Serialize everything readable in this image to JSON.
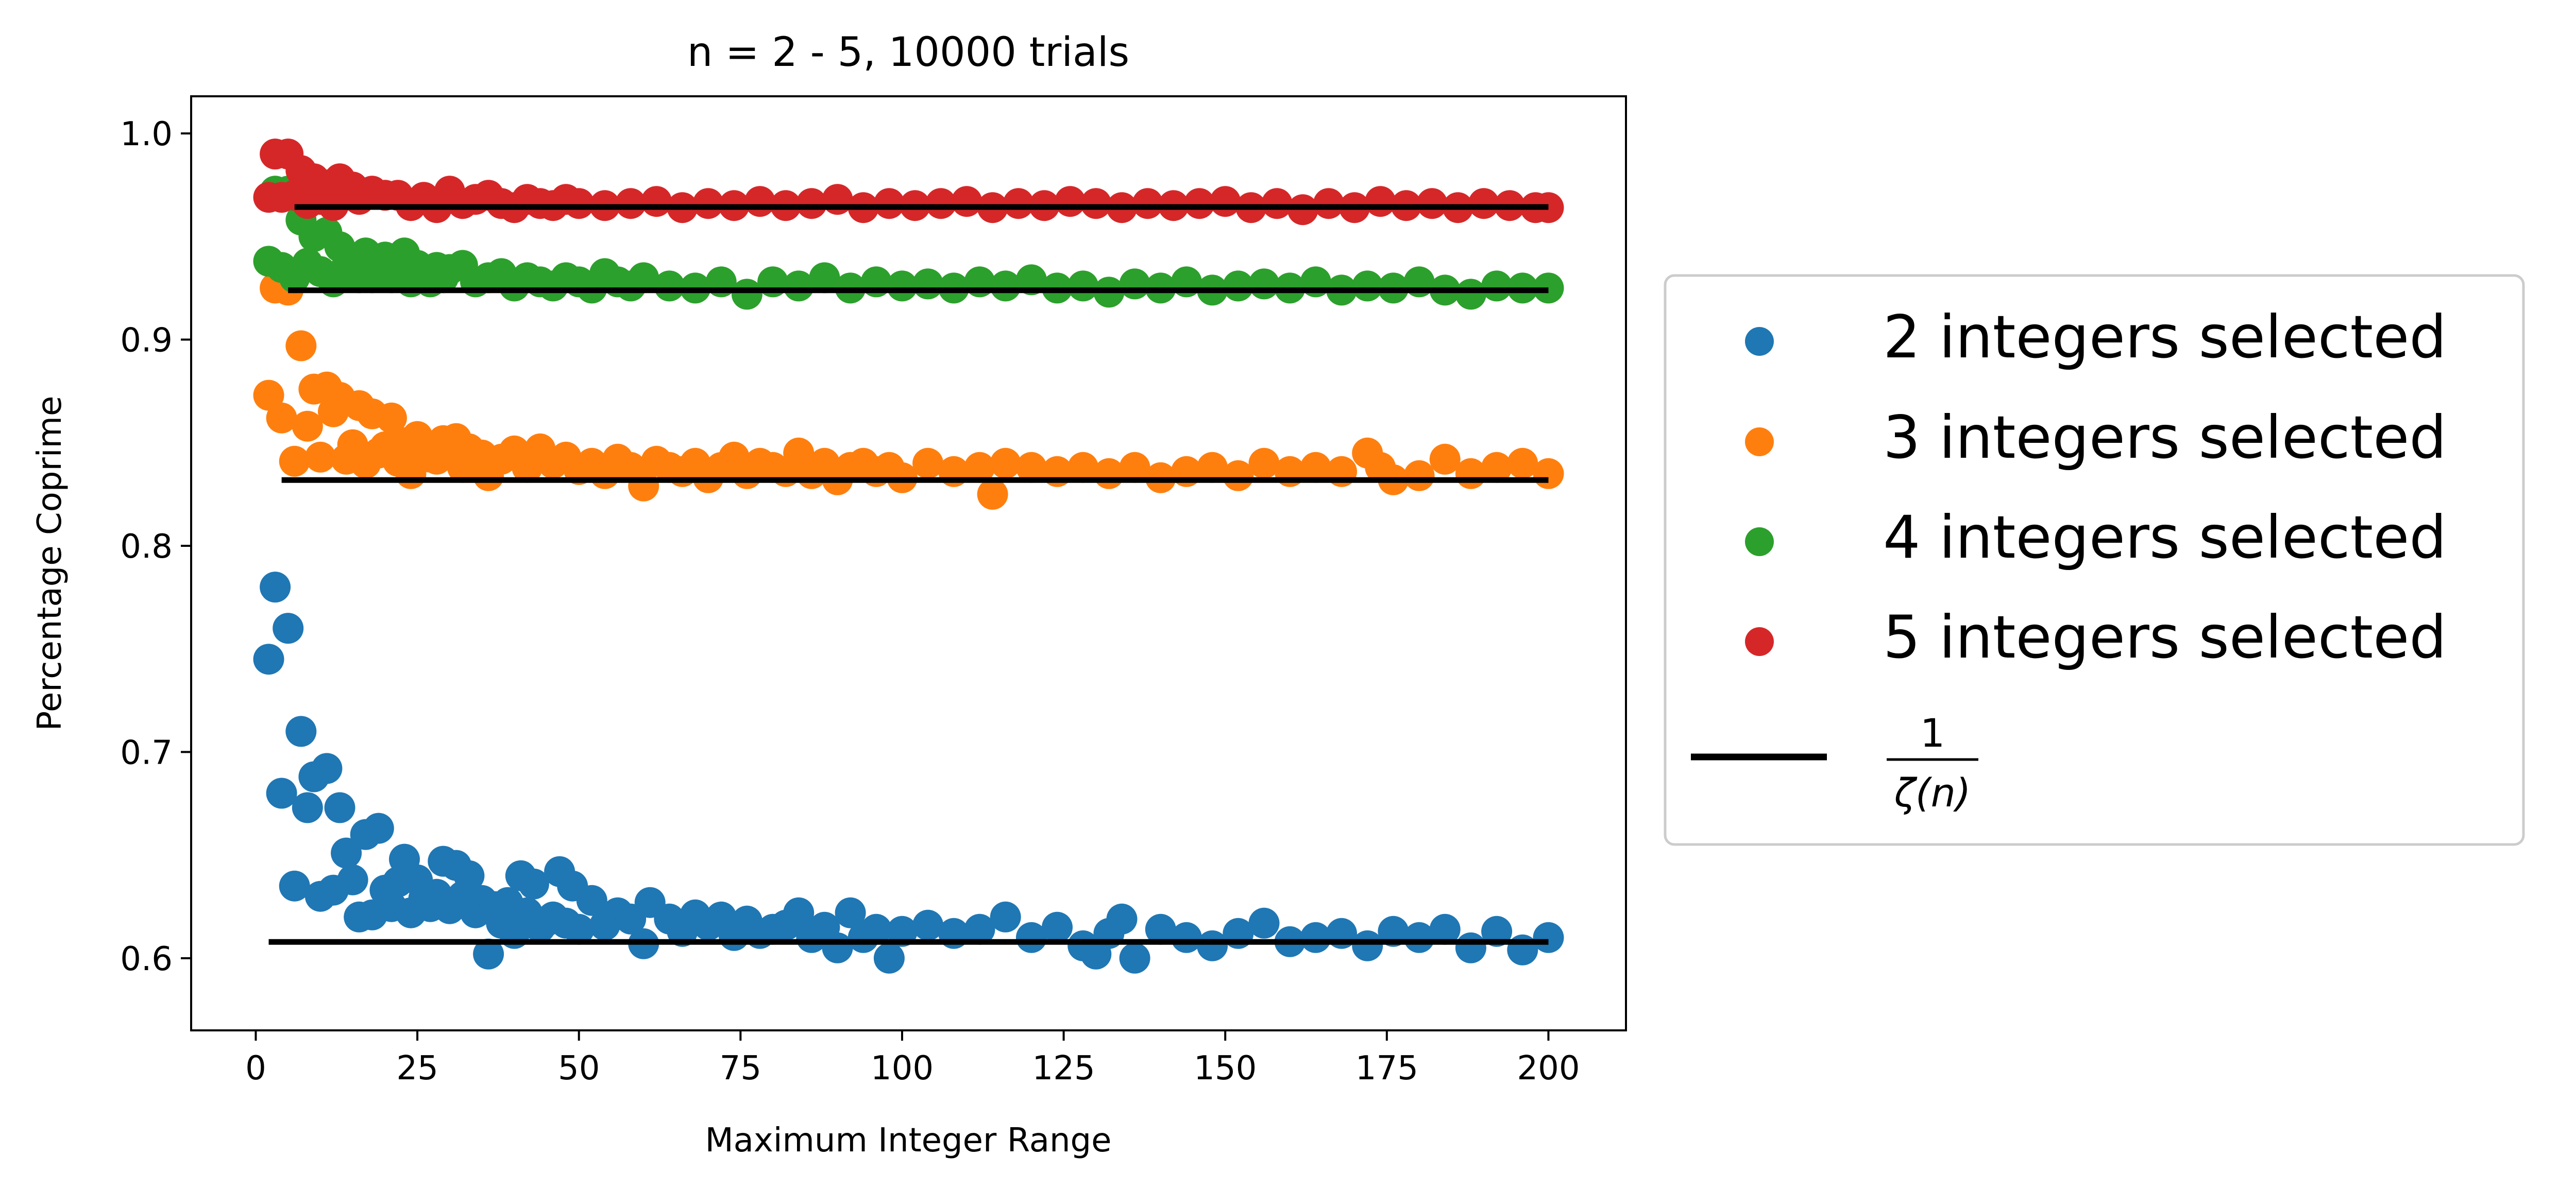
{
  "chart_data": {
    "type": "scatter",
    "title": "n = 2 - 5, 10000 trials",
    "xlabel": "Maximum Integer Range",
    "ylabel": "Percentage Coprime",
    "xlim": [
      -10,
      212
    ],
    "ylim": [
      0.565,
      1.018
    ],
    "xticks": [
      0,
      25,
      50,
      75,
      100,
      125,
      150,
      175,
      200
    ],
    "xtick_labels": [
      "0",
      "25",
      "50",
      "75",
      "100",
      "125",
      "150",
      "175",
      "200"
    ],
    "yticks": [
      0.6,
      0.7,
      0.8,
      0.9,
      1.0
    ],
    "ytick_labels": [
      "0.6",
      "0.7",
      "0.8",
      "0.9",
      "1.0"
    ],
    "legend_position": "right, outside plot",
    "series": [
      {
        "name": "2 integers selected",
        "color": "#1f77b4",
        "x": [
          2,
          3,
          4,
          5,
          6,
          7,
          8,
          9,
          10,
          11,
          12,
          13,
          14,
          15,
          16,
          17,
          18,
          19,
          20,
          21,
          22,
          23,
          24,
          25,
          26,
          27,
          28,
          29,
          30,
          31,
          32,
          33,
          34,
          35,
          36,
          37,
          38,
          39,
          40,
          41,
          42,
          43,
          44,
          45,
          46,
          47,
          48,
          49,
          50,
          52,
          54,
          56,
          58,
          60,
          61,
          64,
          66,
          68,
          70,
          72,
          74,
          76,
          78,
          80,
          82,
          84,
          86,
          88,
          90,
          92,
          94,
          96,
          98,
          100,
          104,
          108,
          112,
          116,
          120,
          124,
          128,
          130,
          132,
          134,
          136,
          140,
          144,
          148,
          152,
          156,
          160,
          164,
          168,
          172,
          176,
          180,
          184,
          188,
          192,
          196,
          200
        ],
        "y": [
          0.745,
          0.78,
          0.68,
          0.76,
          0.635,
          0.71,
          0.673,
          0.688,
          0.63,
          0.692,
          0.633,
          0.673,
          0.651,
          0.638,
          0.62,
          0.66,
          0.621,
          0.663,
          0.633,
          0.625,
          0.637,
          0.648,
          0.622,
          0.638,
          0.629,
          0.625,
          0.631,
          0.647,
          0.624,
          0.645,
          0.63,
          0.64,
          0.622,
          0.628,
          0.602,
          0.625,
          0.617,
          0.627,
          0.612,
          0.64,
          0.622,
          0.636,
          0.615,
          0.618,
          0.62,
          0.642,
          0.617,
          0.635,
          0.614,
          0.628,
          0.616,
          0.622,
          0.619,
          0.607,
          0.627,
          0.619,
          0.613,
          0.621,
          0.616,
          0.62,
          0.611,
          0.618,
          0.612,
          0.614,
          0.616,
          0.622,
          0.61,
          0.615,
          0.605,
          0.622,
          0.61,
          0.614,
          0.6,
          0.613,
          0.616,
          0.612,
          0.614,
          0.62,
          0.61,
          0.615,
          0.606,
          0.602,
          0.612,
          0.619,
          0.6,
          0.614,
          0.61,
          0.606,
          0.612,
          0.617,
          0.608,
          0.61,
          0.612,
          0.606,
          0.613,
          0.61,
          0.614,
          0.605,
          0.613,
          0.604,
          0.61
        ]
      },
      {
        "name": "3 integers selected",
        "color": "#ff7f0e",
        "x": [
          2,
          3,
          4,
          5,
          6,
          7,
          8,
          9,
          10,
          11,
          12,
          13,
          14,
          15,
          16,
          17,
          18,
          19,
          20,
          21,
          22,
          23,
          24,
          25,
          26,
          27,
          28,
          29,
          30,
          31,
          32,
          33,
          34,
          35,
          36,
          38,
          40,
          42,
          44,
          46,
          48,
          50,
          52,
          54,
          56,
          58,
          60,
          62,
          64,
          66,
          68,
          70,
          72,
          74,
          76,
          78,
          80,
          82,
          84,
          86,
          88,
          90,
          92,
          94,
          96,
          98,
          100,
          104,
          108,
          112,
          114,
          116,
          120,
          124,
          128,
          132,
          136,
          140,
          144,
          148,
          152,
          156,
          160,
          164,
          168,
          172,
          174,
          176,
          180,
          184,
          188,
          192,
          196,
          200
        ],
        "y": [
          0.873,
          0.925,
          0.862,
          0.924,
          0.841,
          0.897,
          0.858,
          0.876,
          0.843,
          0.877,
          0.865,
          0.872,
          0.842,
          0.849,
          0.868,
          0.84,
          0.864,
          0.845,
          0.848,
          0.862,
          0.841,
          0.85,
          0.835,
          0.853,
          0.845,
          0.843,
          0.842,
          0.851,
          0.846,
          0.852,
          0.838,
          0.847,
          0.843,
          0.844,
          0.834,
          0.842,
          0.846,
          0.838,
          0.847,
          0.84,
          0.843,
          0.837,
          0.84,
          0.835,
          0.842,
          0.838,
          0.829,
          0.841,
          0.838,
          0.836,
          0.84,
          0.833,
          0.838,
          0.843,
          0.835,
          0.84,
          0.838,
          0.836,
          0.845,
          0.835,
          0.84,
          0.832,
          0.838,
          0.84,
          0.836,
          0.838,
          0.833,
          0.84,
          0.836,
          0.838,
          0.825,
          0.84,
          0.838,
          0.836,
          0.838,
          0.835,
          0.838,
          0.833,
          0.836,
          0.838,
          0.834,
          0.84,
          0.836,
          0.838,
          0.836,
          0.845,
          0.838,
          0.832,
          0.834,
          0.842,
          0.835,
          0.838,
          0.84,
          0.835
        ]
      },
      {
        "name": "4 integers selected",
        "color": "#2ca02c",
        "x": [
          2,
          3,
          4,
          5,
          6,
          7,
          8,
          9,
          10,
          11,
          12,
          13,
          14,
          15,
          16,
          17,
          18,
          19,
          20,
          21,
          22,
          23,
          24,
          25,
          26,
          27,
          28,
          29,
          30,
          32,
          34,
          36,
          38,
          40,
          42,
          44,
          46,
          48,
          50,
          52,
          54,
          56,
          58,
          60,
          64,
          68,
          72,
          76,
          80,
          84,
          88,
          92,
          96,
          100,
          104,
          108,
          112,
          116,
          120,
          124,
          128,
          132,
          136,
          140,
          144,
          148,
          152,
          156,
          160,
          164,
          168,
          172,
          176,
          180,
          184,
          188,
          192,
          196,
          200
        ],
        "y": [
          0.938,
          0.972,
          0.935,
          0.972,
          0.93,
          0.958,
          0.937,
          0.95,
          0.933,
          0.952,
          0.928,
          0.945,
          0.935,
          0.938,
          0.93,
          0.942,
          0.93,
          0.935,
          0.94,
          0.93,
          0.938,
          0.942,
          0.928,
          0.936,
          0.932,
          0.928,
          0.935,
          0.93,
          0.934,
          0.936,
          0.928,
          0.93,
          0.932,
          0.926,
          0.93,
          0.928,
          0.926,
          0.93,
          0.928,
          0.925,
          0.932,
          0.928,
          0.926,
          0.93,
          0.926,
          0.925,
          0.928,
          0.922,
          0.928,
          0.926,
          0.93,
          0.925,
          0.928,
          0.926,
          0.927,
          0.925,
          0.928,
          0.926,
          0.929,
          0.925,
          0.926,
          0.923,
          0.927,
          0.925,
          0.928,
          0.924,
          0.926,
          0.927,
          0.925,
          0.928,
          0.924,
          0.926,
          0.925,
          0.928,
          0.924,
          0.922,
          0.926,
          0.925,
          0.925
        ]
      },
      {
        "name": "5 integers selected",
        "color": "#d62728",
        "x": [
          2,
          3,
          4,
          5,
          6,
          7,
          8,
          9,
          10,
          11,
          12,
          13,
          14,
          15,
          16,
          18,
          20,
          22,
          24,
          26,
          28,
          30,
          32,
          34,
          36,
          38,
          40,
          42,
          44,
          46,
          48,
          50,
          54,
          58,
          62,
          66,
          70,
          74,
          78,
          82,
          86,
          90,
          94,
          98,
          102,
          106,
          110,
          114,
          118,
          122,
          126,
          130,
          134,
          138,
          142,
          146,
          150,
          154,
          158,
          162,
          166,
          170,
          174,
          178,
          182,
          186,
          190,
          194,
          198,
          200
        ],
        "y": [
          0.969,
          0.99,
          0.969,
          0.99,
          0.97,
          0.982,
          0.966,
          0.978,
          0.968,
          0.975,
          0.965,
          0.978,
          0.97,
          0.974,
          0.968,
          0.972,
          0.97,
          0.97,
          0.965,
          0.969,
          0.964,
          0.972,
          0.966,
          0.968,
          0.97,
          0.966,
          0.964,
          0.968,
          0.966,
          0.965,
          0.968,
          0.966,
          0.965,
          0.966,
          0.967,
          0.964,
          0.966,
          0.965,
          0.967,
          0.965,
          0.966,
          0.968,
          0.964,
          0.966,
          0.965,
          0.966,
          0.967,
          0.964,
          0.966,
          0.965,
          0.967,
          0.966,
          0.964,
          0.966,
          0.965,
          0.966,
          0.967,
          0.964,
          0.966,
          0.963,
          0.966,
          0.964,
          0.967,
          0.965,
          0.966,
          0.964,
          0.966,
          0.965,
          0.964,
          0.964
        ]
      }
    ],
    "reference_lines": [
      {
        "name": "1/ζ(n)",
        "x": [
          2,
          200
        ],
        "y": 0.6079,
        "color": "#000000"
      },
      {
        "name": "1/ζ(n)",
        "x": [
          4,
          200
        ],
        "y": 0.8319,
        "color": "#000000"
      },
      {
        "name": "1/ζ(n)",
        "x": [
          5,
          200
        ],
        "y": 0.9239,
        "color": "#000000"
      },
      {
        "name": "1/ζ(n)",
        "x": [
          6,
          200
        ],
        "y": 0.9643,
        "color": "#000000"
      }
    ],
    "legend": {
      "entries": [
        {
          "label": "2 integers selected",
          "kind": "marker",
          "color": "#1f77b4"
        },
        {
          "label": "3 integers selected",
          "kind": "marker",
          "color": "#ff7f0e"
        },
        {
          "label": "4 integers selected",
          "kind": "marker",
          "color": "#2ca02c"
        },
        {
          "label": "5 integers selected",
          "kind": "marker",
          "color": "#d62728"
        },
        {
          "label": "1",
          "label_denominator": "ζ(n)",
          "kind": "line",
          "color": "#000000"
        }
      ]
    }
  }
}
